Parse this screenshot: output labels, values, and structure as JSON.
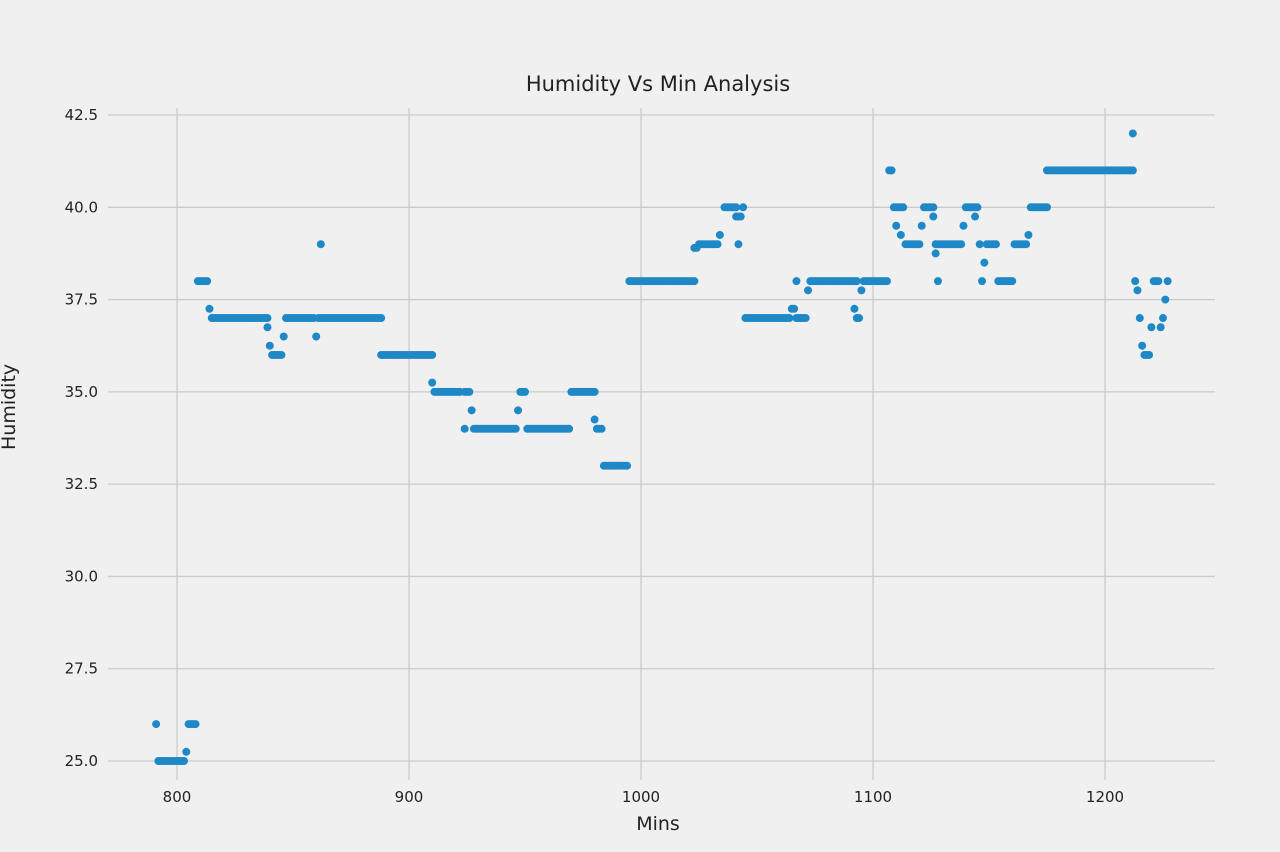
{
  "chart_data": {
    "type": "scatter",
    "title": "Humidity Vs Min Analysis",
    "xlabel": "Mins",
    "ylabel": "Humidity",
    "xlim": [
      770,
      1250
    ],
    "ylim": [
      24.3,
      43
    ],
    "xticks": [
      800,
      900,
      1000,
      1100,
      1200
    ],
    "yticks": [
      25.0,
      27.5,
      30.0,
      32.5,
      35.0,
      37.5,
      40.0,
      42.5
    ],
    "grid": true,
    "legend": null,
    "marker_color": "#1f88c6",
    "background": "#f0f0f0",
    "grid_color": "#cbcbcb",
    "series": [
      {
        "name": "Humidity",
        "runs_format": "[x_start, x_end, y] one point per minute",
        "runs": [
          [
            791,
            791,
            26.0
          ],
          [
            792,
            803,
            25.0
          ],
          [
            804,
            804,
            25.25
          ],
          [
            805,
            808,
            26.0
          ],
          [
            809,
            813,
            38.0
          ],
          [
            814,
            814,
            37.25
          ],
          [
            815,
            839,
            37.0
          ],
          [
            839,
            839,
            36.75
          ],
          [
            840,
            840,
            36.25
          ],
          [
            841,
            845,
            36.0
          ],
          [
            846,
            846,
            36.5
          ],
          [
            847,
            859,
            37.0
          ],
          [
            860,
            860,
            36.5
          ],
          [
            862,
            862,
            39.0
          ],
          [
            861,
            888,
            37.0
          ],
          [
            888,
            910,
            36.0
          ],
          [
            910,
            910,
            35.25
          ],
          [
            911,
            922,
            35.0
          ],
          [
            924,
            924,
            34.0
          ],
          [
            924,
            926,
            35.0
          ],
          [
            927,
            927,
            34.5
          ],
          [
            928,
            946,
            34.0
          ],
          [
            947,
            947,
            34.5
          ],
          [
            948,
            950,
            35.0
          ],
          [
            951,
            969,
            34.0
          ],
          [
            970,
            980,
            35.0
          ],
          [
            980,
            980,
            34.25
          ],
          [
            981,
            983,
            34.0
          ],
          [
            984,
            994,
            33.0
          ],
          [
            995,
            1023,
            38.0
          ],
          [
            1023,
            1024,
            38.9
          ],
          [
            1025,
            1033,
            39.0
          ],
          [
            1034,
            1034,
            39.25
          ],
          [
            1036,
            1041,
            40.0
          ],
          [
            1042,
            1042,
            39.0
          ],
          [
            1041,
            1043,
            39.75
          ],
          [
            1044,
            1044,
            40.0
          ],
          [
            1045,
            1064,
            37.0
          ],
          [
            1065,
            1066,
            37.25
          ],
          [
            1067,
            1067,
            38.0
          ],
          [
            1067,
            1071,
            37.0
          ],
          [
            1072,
            1072,
            37.75
          ],
          [
            1073,
            1093,
            38.0
          ],
          [
            1092,
            1092,
            37.25
          ],
          [
            1093,
            1094,
            37.0
          ],
          [
            1095,
            1095,
            37.75
          ],
          [
            1096,
            1106,
            38.0
          ],
          [
            1107,
            1108,
            41.0
          ],
          [
            1109,
            1113,
            40.0
          ],
          [
            1110,
            1110,
            39.5
          ],
          [
            1112,
            1112,
            39.25
          ],
          [
            1114,
            1120,
            39.0
          ],
          [
            1121,
            1121,
            39.5
          ],
          [
            1122,
            1126,
            40.0
          ],
          [
            1126,
            1126,
            39.75
          ],
          [
            1127,
            1127,
            38.75
          ],
          [
            1128,
            1128,
            38.0
          ],
          [
            1127,
            1138,
            39.0
          ],
          [
            1139,
            1139,
            39.5
          ],
          [
            1140,
            1145,
            40.0
          ],
          [
            1144,
            1144,
            39.75
          ],
          [
            1146,
            1146,
            39.0
          ],
          [
            1147,
            1147,
            38.0
          ],
          [
            1148,
            1148,
            38.5
          ],
          [
            1149,
            1153,
            39.0
          ],
          [
            1154,
            1160,
            38.0
          ],
          [
            1161,
            1166,
            39.0
          ],
          [
            1167,
            1167,
            39.25
          ],
          [
            1168,
            1175,
            40.0
          ],
          [
            1175,
            1212,
            41.0
          ],
          [
            1212,
            1212,
            42.0
          ],
          [
            1213,
            1213,
            38.0
          ],
          [
            1214,
            1214,
            37.75
          ],
          [
            1215,
            1215,
            37.0
          ],
          [
            1216,
            1216,
            36.25
          ],
          [
            1217,
            1219,
            36.0
          ],
          [
            1220,
            1220,
            36.75
          ],
          [
            1221,
            1223,
            38.0
          ],
          [
            1224,
            1224,
            36.75
          ],
          [
            1225,
            1225,
            37.0
          ],
          [
            1226,
            1226,
            37.5
          ],
          [
            1227,
            1227,
            38.0
          ]
        ]
      }
    ]
  }
}
